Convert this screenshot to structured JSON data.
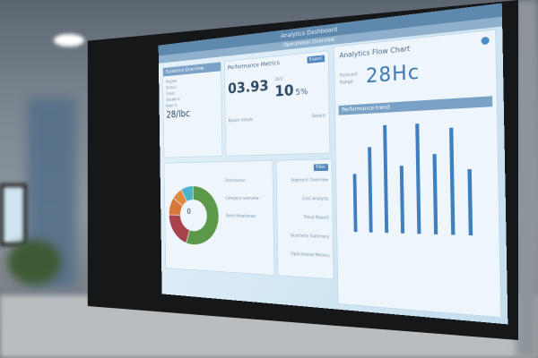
{
  "header": {
    "title": "Analytics Dashboard",
    "subtitle": "Operational Overview"
  },
  "left_panel": {
    "title": "Summary Overview",
    "items": [
      "Region",
      "Status",
      "Users",
      "Sessions",
      "Rate %"
    ],
    "value": "28/Ibc"
  },
  "center_panel": {
    "title": "Performance Metrics",
    "action_label": "Export",
    "value_left": "03.93",
    "value_right_label": "16/2",
    "value_right": "10",
    "value_right_pct": "5%",
    "footer_left": "Report details",
    "footer_right": "Details"
  },
  "right_panel": {
    "title": "Analytics Flow Chart",
    "label1": "Forecast",
    "label2": "Range",
    "kpi": "28Hc",
    "section_title": "Performance trend"
  },
  "donut": {
    "center_label": "0",
    "segments": [
      {
        "value": 55,
        "color": "#5c9a4a"
      },
      {
        "value": 20,
        "color": "#a8434d"
      },
      {
        "value": 10,
        "color": "#d9773a"
      },
      {
        "value": 7,
        "color": "#e08a3c"
      },
      {
        "value": 8,
        "color": "#4fb3c9"
      }
    ],
    "legend": [
      "Distribution",
      "Category overview",
      "Sales Breakdown"
    ]
  },
  "list": {
    "button": "Filter",
    "items": [
      "Segment Overview",
      "Cost Analysis",
      "Trend Report",
      "Quarterly Summary",
      "Operational Metrics"
    ]
  },
  "bar_chart": {
    "values": [
      55,
      80,
      100,
      62,
      100,
      72,
      95,
      58
    ],
    "color": "#3f7fc0"
  }
}
